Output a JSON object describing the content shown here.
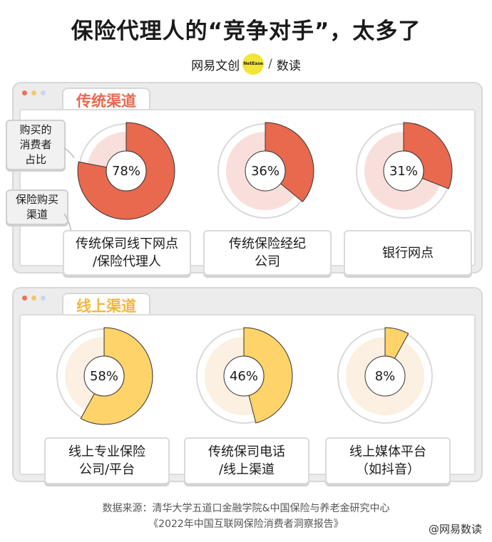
{
  "title": "保险代理人的“竞争对手”，太多了",
  "brand": {
    "name": "网易文创",
    "badge": "NetEase",
    "sub": "数读"
  },
  "callouts": {
    "share": "购买的\n消费者\n占比",
    "channel": "保险购买\n渠道"
  },
  "colors": {
    "traditional": "#e8694e",
    "traditional_track": "#f9dfdb",
    "online": "#fdd36a",
    "online_track": "#fbf0e1",
    "tab_red": "#e8694e",
    "tab_yellow": "#f0b73a"
  },
  "chart_data": [
    {
      "type": "pie",
      "title": "传统渠道",
      "categories": [
        "传统保司线下网点/保险代理人",
        "传统保险经纪公司",
        "银行网点"
      ],
      "values": [
        78,
        36,
        31
      ],
      "unit": "%"
    },
    {
      "type": "pie",
      "title": "线上渠道",
      "categories": [
        "线上专业保险公司/平台",
        "传统保司电话/线上渠道",
        "线上媒体平台（如抖音）"
      ],
      "values": [
        58,
        46,
        8
      ],
      "unit": "%"
    }
  ],
  "panels": [
    {
      "tab": "传统渠道",
      "labels": [
        "传统保司线下网点\n/保险代理人",
        "传统保险经纪\n公司",
        "银行网点"
      ]
    },
    {
      "tab": "线上渠道",
      "labels": [
        "线上专业保险\n公司/平台",
        "传统保司电话\n/线上渠道",
        "线上媒体平台\n（如抖音）"
      ]
    }
  ],
  "source": {
    "line1": "数据来源：清华大学五道口金融学院&中国保险与养老金研究中心",
    "line2": "《2022年中国互联网保险消费者洞察报告》"
  },
  "watermark": "@网易数读"
}
